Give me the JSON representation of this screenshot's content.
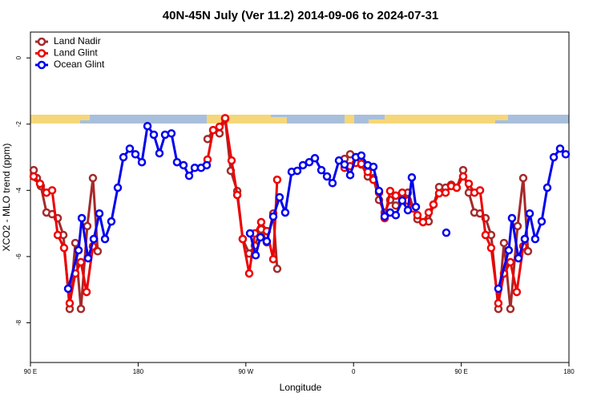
{
  "chart_data": {
    "type": "line",
    "title": "40N-45N July (Ver 11.2)   2014-09-06 to 2024-07-31",
    "xlabel": "Longitude",
    "ylabel": "XCO2 - MLO trend (ppm)",
    "xlim": [
      90,
      540
    ],
    "ylim": [
      -9.2,
      0.78
    ],
    "xticks": [
      {
        "value": 90,
        "label": "90 E"
      },
      180,
      {
        "value": 270,
        "label": "90 W"
      },
      {
        "value": 360,
        "label": "0"
      },
      {
        "value": 450,
        "label": "90 E"
      },
      {
        "value": 540,
        "label": "180"
      }
    ],
    "yticks": [
      0,
      -2,
      -4,
      -6,
      -8
    ],
    "legend": "top-left",
    "series": [
      {
        "name": "Land Nadir",
        "color": "#a52a2a",
        "x": [
          92.7,
          95.4,
          98.7,
          103.4,
          108.1,
          112.8,
          117.5,
          122.8,
          127.5,
          132.2,
          137.5,
          142.2,
          146.2,
          190.0,
          238.0,
          242.7,
          248.0,
          252.7,
          257.4,
          262.8,
          267.4,
          272.8,
          277.5,
          282.8,
          287.5,
          292.9,
          296.2,
          320.0,
          352.5,
          357.2,
          361.9,
          366.5,
          371.9,
          376.6,
          381.3,
          386.0,
          390.6,
          395.3,
          400.7,
          405.4,
          410.1,
          413.4,
          418.1,
          422.8,
          426.8,
          431.5,
          436.9,
          441.6,
          446.2,
          451.6,
          456.3,
          461.0,
          465.7,
          470.3,
          475.0,
          481.0,
          485.7,
          491.1,
          497.1,
          501.8,
          505.8
        ],
        "values": [
          -3.39,
          -3.63,
          -3.87,
          -4.67,
          -4.72,
          -4.84,
          -5.35,
          -7.58,
          -5.59,
          -7.58,
          -5.08,
          -3.63,
          -5.84,
          null,
          -2.45,
          -2.18,
          -2.28,
          -1.84,
          -3.41,
          -4.02,
          -5.47,
          -5.91,
          -5.67,
          -5.18,
          -5.57,
          -4.7,
          -6.37,
          null,
          -3.05,
          -2.91,
          -3.0,
          -3.22,
          -3.58,
          -3.63,
          -4.29,
          -4.67,
          -4.29,
          -4.46,
          -4.26,
          -4.07,
          -4.53,
          -4.87,
          -4.96,
          -4.94,
          -4.43,
          -3.9,
          -3.92,
          -3.83,
          -3.92,
          -3.39,
          -4.07,
          -4.67,
          -4.7,
          -4.84,
          -5.35,
          -7.58,
          -5.59,
          -7.58,
          -5.08,
          -3.63,
          -5.84
        ]
      },
      {
        "name": "Land Glint",
        "color": "#ee0000",
        "x": [
          92.7,
          98.0,
          103.4,
          108.1,
          112.8,
          118.1,
          122.8,
          127.5,
          132.2,
          136.9,
          142.2,
          190.0,
          238.0,
          242.7,
          248.0,
          252.7,
          258.1,
          262.8,
          267.4,
          272.8,
          277.5,
          282.8,
          287.5,
          292.9,
          296.2,
          320.0,
          352.5,
          357.2,
          361.9,
          366.5,
          371.9,
          376.6,
          381.3,
          386.0,
          390.6,
          395.3,
          400.7,
          405.4,
          410.1,
          413.4,
          418.1,
          422.8,
          426.8,
          431.5,
          436.9,
          441.6,
          446.2,
          451.6,
          456.3,
          461.0,
          465.7,
          470.3,
          475.0,
          481.0,
          485.7,
          491.1,
          496.4,
          501.8
        ],
        "values": [
          -3.58,
          -3.8,
          -4.07,
          -4.0,
          -5.35,
          -5.74,
          -7.41,
          -6.51,
          -6.17,
          -7.07,
          -5.69,
          null,
          -3.07,
          -2.18,
          -2.08,
          -1.82,
          -3.1,
          -4.14,
          -5.47,
          -6.51,
          -5.3,
          -4.96,
          -5.23,
          -6.08,
          -3.68,
          null,
          -3.32,
          -3.27,
          -3.17,
          -3.2,
          -3.44,
          -3.68,
          -4.07,
          -4.84,
          -4.02,
          -4.16,
          -4.07,
          -4.31,
          -4.55,
          -4.75,
          -4.96,
          -4.67,
          -4.43,
          -4.09,
          -4.07,
          -3.87,
          -3.92,
          -3.58,
          -3.8,
          -4.07,
          -4.0,
          -5.35,
          -5.74,
          -7.41,
          -6.51,
          -6.17,
          -7.07,
          -5.69
        ]
      },
      {
        "name": "Ocean Glint",
        "color": "#0000ee",
        "x": [
          121.5,
          130.2,
          132.9,
          138.2,
          142.9,
          147.6,
          152.3,
          157.6,
          163.0,
          167.7,
          173.0,
          177.7,
          183.1,
          187.8,
          193.1,
          197.8,
          202.5,
          207.8,
          212.5,
          217.9,
          222.6,
          227.3,
          232.6,
          237.3,
          255.0,
          273.5,
          278.2,
          282.2,
          287.5,
          292.9,
          298.2,
          302.9,
          308.3,
          313.0,
          317.7,
          323.0,
          327.7,
          333.1,
          337.8,
          342.4,
          347.8,
          352.5,
          357.2,
          361.9,
          366.5,
          371.9,
          376.6,
          381.3,
          386.0,
          390.6,
          395.3,
          400.7,
          405.4,
          408.7,
          412.1,
          425.0,
          437.5,
          460.0,
          481.0,
          489.7,
          492.4,
          497.8,
          503.1,
          507.2,
          511.8,
          517.2,
          521.9,
          527.3,
          532.6,
          537.3
        ],
        "values": [
          -6.97,
          -5.81,
          -4.84,
          -6.05,
          -5.47,
          -4.7,
          -5.47,
          -4.94,
          -3.92,
          -3.0,
          -2.74,
          -2.91,
          -3.15,
          -2.06,
          -2.32,
          -2.88,
          -2.32,
          -2.28,
          -3.15,
          -3.24,
          -3.56,
          -3.32,
          -3.32,
          -3.24,
          null,
          -5.3,
          -5.96,
          -5.42,
          -5.54,
          -4.79,
          -4.21,
          -4.67,
          -3.44,
          -3.41,
          -3.24,
          -3.15,
          -3.03,
          -3.39,
          -3.58,
          -3.78,
          -3.1,
          -3.22,
          -3.54,
          -3.0,
          -2.95,
          -3.24,
          -3.29,
          -4.02,
          -4.79,
          -4.67,
          -4.75,
          -4.31,
          -4.6,
          -3.61,
          -4.5,
          null,
          -5.28,
          null,
          -6.97,
          -5.81,
          -4.84,
          -6.05,
          -5.47,
          -4.7,
          -5.47,
          -4.94,
          -3.92,
          -3.0,
          -2.74,
          -2.91
        ]
      }
    ]
  }
}
